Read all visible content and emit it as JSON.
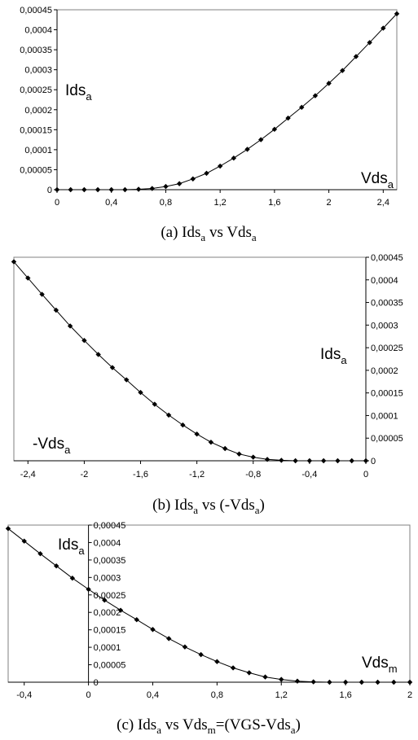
{
  "chart_data": [
    {
      "type": "scatter",
      "caption": {
        "main": "(a) Ids",
        "sub1": "a",
        "mid": " vs Vds",
        "sub2": "a",
        "tail": ""
      },
      "ylabel": {
        "main": "Ids",
        "sub": "a"
      },
      "xlabel": {
        "main": "Vds",
        "sub": "a"
      },
      "xlim": [
        0,
        2.5
      ],
      "ylim": [
        0,
        0.00045
      ],
      "x_ticks": [
        {
          "v": 0,
          "label": "0"
        },
        {
          "v": 0.4,
          "label": "0,4"
        },
        {
          "v": 0.8,
          "label": "0,8"
        },
        {
          "v": 1.2,
          "label": "1,2"
        },
        {
          "v": 1.6,
          "label": "1,6"
        },
        {
          "v": 2,
          "label": "2"
        },
        {
          "v": 2.4,
          "label": "2,4"
        }
      ],
      "y_ticks": [
        {
          "v": 0,
          "label": "0"
        },
        {
          "v": 5e-05,
          "label": "0,00005"
        },
        {
          "v": 0.0001,
          "label": "0,0001"
        },
        {
          "v": 0.00015,
          "label": "0,00015"
        },
        {
          "v": 0.0002,
          "label": "0,0002"
        },
        {
          "v": 0.00025,
          "label": "0,00025"
        },
        {
          "v": 0.0003,
          "label": "0,0003"
        },
        {
          "v": 0.00035,
          "label": "0,00035"
        },
        {
          "v": 0.0004,
          "label": "0,0004"
        },
        {
          "v": 0.00045,
          "label": "0,00045"
        }
      ],
      "y_axis_side": "left",
      "x": [
        0,
        0.1,
        0.2,
        0.3,
        0.4,
        0.5,
        0.6,
        0.7,
        0.8,
        0.9,
        1.0,
        1.1,
        1.2,
        1.3,
        1.4,
        1.5,
        1.6,
        1.7,
        1.8,
        1.9,
        2.0,
        2.1,
        2.2,
        2.3,
        2.4,
        2.5
      ],
      "y": [
        0,
        0,
        0,
        0,
        0,
        0,
        1e-06,
        3e-06,
        8e-06,
        1.5e-05,
        2.7e-05,
        4.1e-05,
        5.9e-05,
        7.9e-05,
        0.000101,
        0.000125,
        0.000151,
        0.000179,
        0.000206,
        0.000235,
        0.000266,
        0.000298,
        0.000333,
        0.000368,
        0.000404,
        0.00044
      ]
    },
    {
      "type": "scatter",
      "caption": {
        "main": "(b) Ids",
        "sub1": "a",
        "mid": " vs (-Vds",
        "sub2": "a",
        "tail": ")"
      },
      "ylabel": {
        "main": "Ids",
        "sub": "a"
      },
      "xlabel": {
        "main": "-Vds",
        "sub": "a"
      },
      "xlim": [
        -2.5,
        0
      ],
      "ylim": [
        0,
        0.00045
      ],
      "x_ticks": [
        {
          "v": -2.4,
          "label": "-2,4"
        },
        {
          "v": -2,
          "label": "-2"
        },
        {
          "v": -1.6,
          "label": "-1,6"
        },
        {
          "v": -1.2,
          "label": "-1,2"
        },
        {
          "v": -0.8,
          "label": "-0,8"
        },
        {
          "v": -0.4,
          "label": "-0,4"
        },
        {
          "v": 0,
          "label": "0"
        }
      ],
      "y_ticks": [
        {
          "v": 0,
          "label": "0"
        },
        {
          "v": 5e-05,
          "label": "0,00005"
        },
        {
          "v": 0.0001,
          "label": "0,0001"
        },
        {
          "v": 0.00015,
          "label": "0,00015"
        },
        {
          "v": 0.0002,
          "label": "0,0002"
        },
        {
          "v": 0.00025,
          "label": "0,00025"
        },
        {
          "v": 0.0003,
          "label": "0,0003"
        },
        {
          "v": 0.00035,
          "label": "0,00035"
        },
        {
          "v": 0.0004,
          "label": "0,0004"
        },
        {
          "v": 0.00045,
          "label": "0,00045"
        }
      ],
      "y_axis_side": "right",
      "x": [
        -2.5,
        -2.4,
        -2.3,
        -2.2,
        -2.1,
        -2.0,
        -1.9,
        -1.8,
        -1.7,
        -1.6,
        -1.5,
        -1.4,
        -1.3,
        -1.2,
        -1.1,
        -1.0,
        -0.9,
        -0.8,
        -0.7,
        -0.6,
        -0.5,
        -0.4,
        -0.3,
        -0.2,
        -0.1,
        0
      ],
      "y": [
        0.00044,
        0.000404,
        0.000368,
        0.000333,
        0.000298,
        0.000266,
        0.000235,
        0.000206,
        0.000179,
        0.000151,
        0.000125,
        0.000101,
        7.9e-05,
        5.9e-05,
        4.1e-05,
        2.7e-05,
        1.5e-05,
        8e-06,
        3e-06,
        1e-06,
        0,
        0,
        0,
        0,
        0,
        0
      ]
    },
    {
      "type": "scatter",
      "caption": {
        "main": "(c) Ids",
        "sub1": "a",
        "mid": " vs Vds",
        "sub2": "m",
        "tail": "=(VGS-Vds",
        "sub3": "a",
        "tail2": ")"
      },
      "ylabel": {
        "main": "Ids",
        "sub": "a"
      },
      "xlabel": {
        "main": "Vds",
        "sub": "m"
      },
      "xlim": [
        -0.5,
        2.0
      ],
      "ylim": [
        0,
        0.00045
      ],
      "x_ticks": [
        {
          "v": -0.4,
          "label": "-0,4"
        },
        {
          "v": 0,
          "label": "0"
        },
        {
          "v": 0.4,
          "label": "0,4"
        },
        {
          "v": 0.8,
          "label": "0,8"
        },
        {
          "v": 1.2,
          "label": "1,2"
        },
        {
          "v": 1.6,
          "label": "1,6"
        },
        {
          "v": 2,
          "label": "2"
        }
      ],
      "y_ticks": [
        {
          "v": 0,
          "label": "0"
        },
        {
          "v": 5e-05,
          "label": "0,00005"
        },
        {
          "v": 0.0001,
          "label": "0,0001"
        },
        {
          "v": 0.00015,
          "label": "0,00015"
        },
        {
          "v": 0.0002,
          "label": "0,0002"
        },
        {
          "v": 0.00025,
          "label": "0,00025"
        },
        {
          "v": 0.0003,
          "label": "0,0003"
        },
        {
          "v": 0.00035,
          "label": "0,00035"
        },
        {
          "v": 0.0004,
          "label": "0,0004"
        },
        {
          "v": 0.00045,
          "label": "0,00045"
        }
      ],
      "y_axis_side": "at-x-zero",
      "x": [
        -0.5,
        -0.4,
        -0.3,
        -0.2,
        -0.1,
        0.0,
        0.1,
        0.2,
        0.3,
        0.4,
        0.5,
        0.6,
        0.7,
        0.8,
        0.9,
        1.0,
        1.1,
        1.2,
        1.3,
        1.4,
        1.5,
        1.6,
        1.7,
        1.8,
        1.9,
        2.0
      ],
      "y": [
        0.00044,
        0.000404,
        0.000368,
        0.000333,
        0.000298,
        0.000266,
        0.000235,
        0.000206,
        0.000179,
        0.000151,
        0.000125,
        0.000101,
        7.9e-05,
        5.9e-05,
        4.1e-05,
        2.7e-05,
        1.5e-05,
        8e-06,
        3e-06,
        1e-06,
        0,
        0,
        0,
        0,
        0,
        0
      ]
    }
  ]
}
